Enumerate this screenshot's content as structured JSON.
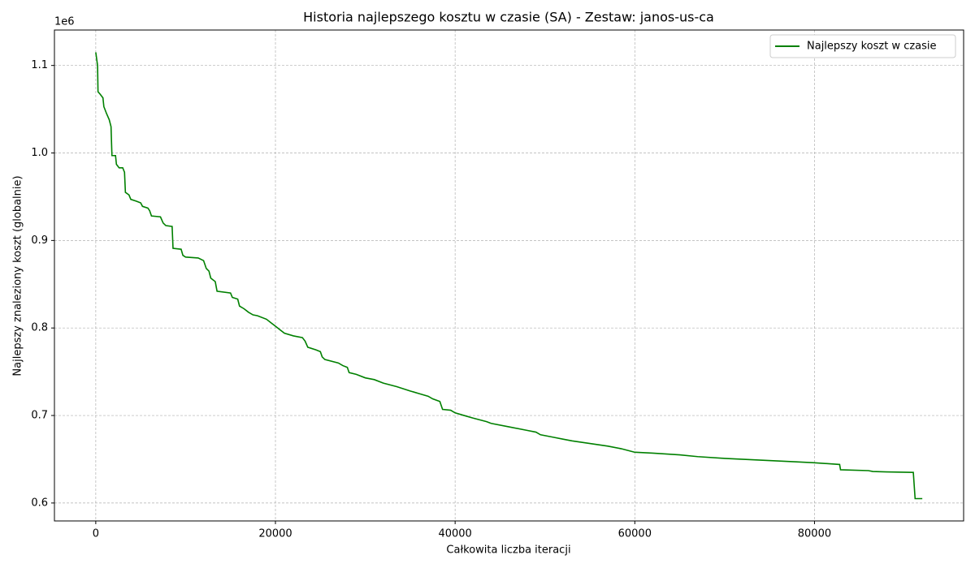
{
  "chart_data": {
    "type": "line",
    "title": "Historia najlepszego kosztu w czasie (SA) - Zestaw: janos-us-ca",
    "x_label": "Całkowita liczba iteracji",
    "y_label": "Najlepszy znaleziony koszt (globalnie)",
    "y_offset_label": "1e6",
    "x": [
      0,
      200,
      250,
      500,
      800,
      900,
      1200,
      1500,
      1700,
      1800,
      2200,
      2300,
      2600,
      3000,
      3200,
      3300,
      3700,
      3900,
      4500,
      5000,
      5200,
      5800,
      6000,
      6200,
      7200,
      7500,
      7800,
      8500,
      8600,
      9500,
      9700,
      10000,
      11400,
      12000,
      12300,
      12600,
      12800,
      13300,
      13500,
      15000,
      15200,
      15800,
      16000,
      16500,
      17000,
      17500,
      18000,
      19000,
      19500,
      20000,
      20500,
      21000,
      22000,
      23000,
      23300,
      23600,
      24500,
      25000,
      25200,
      25500,
      27000,
      27500,
      28000,
      28200,
      29000,
      30000,
      31000,
      32000,
      33500,
      35000,
      36000,
      37000,
      37500,
      38300,
      38600,
      39500,
      40000,
      41000,
      42000,
      43500,
      44000,
      46000,
      48000,
      49000,
      49500,
      51000,
      52000,
      53000,
      55000,
      57000,
      58500,
      60000,
      62000,
      65000,
      67000,
      70000,
      74000,
      78000,
      80000,
      82800,
      82900,
      86000,
      86500,
      88000,
      91000,
      91200,
      92000
    ],
    "series": [
      {
        "name": "Najlepszy koszt w czasie",
        "color": "#008000",
        "values": [
          1115000,
          1100000,
          1070000,
          1067000,
          1063000,
          1053000,
          1045000,
          1038000,
          1030000,
          997000,
          997000,
          987000,
          983000,
          983000,
          978000,
          955000,
          952000,
          947000,
          945000,
          943000,
          939000,
          937000,
          934000,
          928000,
          927000,
          920000,
          917000,
          916000,
          891000,
          890000,
          883000,
          881000,
          880000,
          877000,
          868000,
          865000,
          857000,
          853000,
          842000,
          840000,
          835000,
          833000,
          825000,
          822000,
          818000,
          815000,
          814000,
          810000,
          806000,
          802000,
          798000,
          794000,
          791000,
          789000,
          785000,
          778000,
          775000,
          773000,
          767000,
          764000,
          760000,
          757000,
          755000,
          749000,
          747000,
          743000,
          741000,
          737000,
          733000,
          728000,
          725000,
          722000,
          719000,
          716000,
          707000,
          706000,
          703000,
          700000,
          697000,
          693000,
          691000,
          687000,
          683000,
          681000,
          678000,
          675000,
          673000,
          671000,
          668000,
          665000,
          662000,
          658000,
          657000,
          655000,
          653000,
          651000,
          649000,
          647000,
          646000,
          644000,
          638000,
          637000,
          636000,
          635500,
          635000,
          605000,
          605000
        ]
      }
    ],
    "xlim": [
      -4600,
      96600
    ],
    "xticks": [
      0,
      20000,
      40000,
      60000,
      80000
    ],
    "ylim": [
      579500,
      1140500
    ],
    "yticks": [
      {
        "value": 600000,
        "label": "0.6"
      },
      {
        "value": 700000,
        "label": "0.7"
      },
      {
        "value": 800000,
        "label": "0.8"
      },
      {
        "value": 900000,
        "label": "0.9"
      },
      {
        "value": 1000000,
        "label": "1.0"
      },
      {
        "value": 1100000,
        "label": "1.1"
      }
    ],
    "grid": true,
    "legend_position": "upper-right"
  }
}
